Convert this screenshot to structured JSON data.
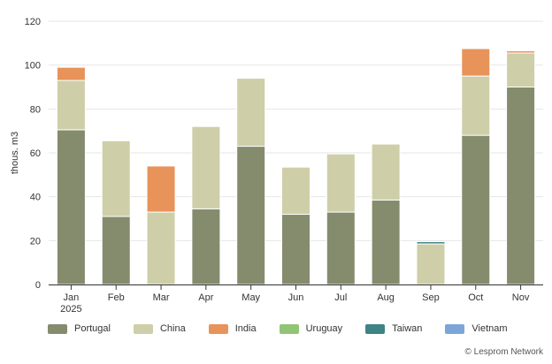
{
  "chart_data": {
    "type": "bar",
    "stacked": true,
    "ylabel": "thous. m3",
    "ylim": [
      0,
      120
    ],
    "yticks": [
      0,
      20,
      40,
      60,
      80,
      100,
      120
    ],
    "grid": true,
    "legend_position": "bottom-left",
    "categories": [
      "Jan\n2025",
      "Feb",
      "Mar",
      "Apr",
      "May",
      "Jun",
      "Jul",
      "Aug",
      "Sep",
      "Oct",
      "Nov"
    ],
    "series": [
      {
        "name": "Portugal",
        "color": "#858c6e",
        "values": [
          70.5,
          31,
          0,
          34.5,
          63,
          32,
          33,
          38.5,
          0,
          68,
          90
        ]
      },
      {
        "name": "China",
        "color": "#cecea8",
        "values": [
          22.5,
          34.5,
          33,
          37.5,
          31,
          21.5,
          26.5,
          25.5,
          18.5,
          27,
          15.5
        ]
      },
      {
        "name": "India",
        "color": "#e8935a",
        "values": [
          6,
          0,
          21,
          0,
          0,
          0,
          0,
          0,
          0,
          12.5,
          1
        ]
      },
      {
        "name": "Uruguay",
        "color": "#92c476",
        "values": [
          0,
          0,
          0,
          0,
          0,
          0,
          0,
          0,
          0,
          0,
          0
        ]
      },
      {
        "name": "Taiwan",
        "color": "#3e8385",
        "values": [
          0,
          0,
          0,
          0,
          0,
          0,
          0,
          0,
          1,
          0,
          0
        ]
      },
      {
        "name": "Vietnam",
        "color": "#7ca6d9",
        "values": [
          0,
          0,
          0,
          0,
          0,
          0,
          0,
          0,
          0,
          0,
          0
        ]
      }
    ]
  },
  "credits": "© Lesprom Network"
}
